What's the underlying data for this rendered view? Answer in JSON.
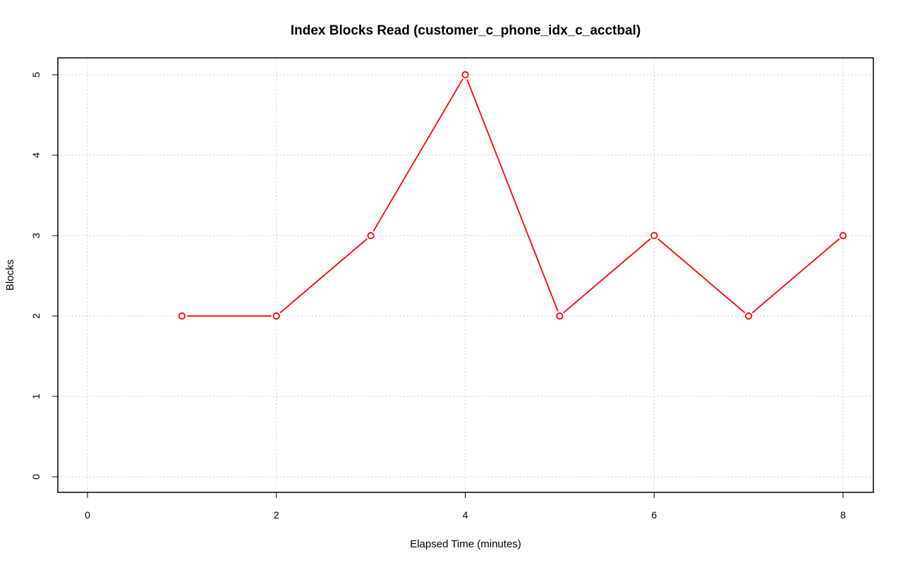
{
  "chart_data": {
    "type": "line",
    "title": "Index Blocks Read (customer_c_phone_idx_c_acctbal)",
    "xlabel": "Elapsed Time (minutes)",
    "ylabel": "Blocks",
    "xlim": [
      0,
      8
    ],
    "ylim": [
      0,
      5
    ],
    "xticks": [
      0,
      2,
      4,
      6,
      8
    ],
    "yticks": [
      0,
      1,
      2,
      3,
      4,
      5
    ],
    "grid": true,
    "series": [
      {
        "color": "#ff0000",
        "x": [
          1,
          2,
          3,
          4,
          5,
          6,
          7,
          8
        ],
        "y": [
          2,
          2,
          3,
          5,
          2,
          3,
          2,
          3
        ]
      }
    ]
  }
}
